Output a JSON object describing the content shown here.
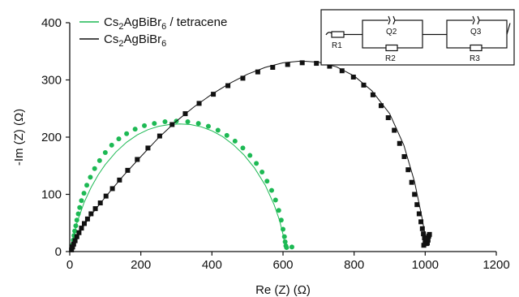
{
  "chart_data": {
    "type": "scatter",
    "xlabel": "Re (Z) (Ω)",
    "ylabel": "-Im (Z) (Ω)",
    "xlim": [
      0,
      1200
    ],
    "ylim": [
      0,
      400
    ],
    "xticks": [
      0,
      200,
      400,
      600,
      800,
      1000,
      1200
    ],
    "yticks": [
      0,
      100,
      200,
      300,
      400
    ],
    "grid": false,
    "legend_position": "top-left",
    "series": [
      {
        "name": "Cs2AgBiBr6 / tetracene",
        "name_parts": {
          "a": "Cs",
          "b": "2",
          "c": "AgBiBr",
          "d": "6",
          "e": " / tetracene"
        },
        "color": "#1db954",
        "marker": "circle",
        "x": [
          6,
          8,
          10,
          12,
          14,
          17,
          20,
          24,
          28,
          33,
          40,
          48,
          58,
          70,
          84,
          100,
          118,
          138,
          160,
          184,
          210,
          238,
          268,
          300,
          332,
          362,
          390,
          417,
          442,
          465,
          487,
          507,
          525,
          541,
          555,
          568,
          579,
          588,
          595,
          600,
          604,
          606,
          608,
          610,
          625
        ],
        "y": [
          5,
          12,
          20,
          28,
          36,
          45,
          55,
          66,
          77,
          89,
          102,
          116,
          130,
          145,
          159,
          173,
          186,
          197,
          206,
          214,
          220,
          224,
          227,
          228,
          227,
          224,
          219,
          212,
          203,
          193,
          181,
          168,
          154,
          139,
          123,
          107,
          90,
          72,
          55,
          39,
          26,
          17,
          10,
          7,
          8
        ],
        "fit_x": [
          5,
          20,
          40,
          60,
          80,
          100,
          130,
          160,
          190,
          220,
          250,
          280,
          310,
          340,
          370,
          400,
          430,
          460,
          490,
          520,
          550,
          575,
          590,
          600,
          607
        ],
        "fit_y": [
          2,
          50,
          85,
          112,
          134,
          152,
          174,
          191,
          204,
          213,
          219,
          222,
          223,
          222,
          218,
          211,
          201,
          187,
          169,
          146,
          116,
          82,
          55,
          30,
          4
        ]
      },
      {
        "name": "Cs2AgBiBr6",
        "name_parts": {
          "a": "Cs",
          "b": "2",
          "c": "AgBiBr",
          "d": "6"
        },
        "color": "#111111",
        "marker": "square",
        "x": [
          5,
          8,
          11,
          15,
          20,
          26,
          33,
          41,
          50,
          60,
          72,
          86,
          102,
          120,
          140,
          163,
          190,
          220,
          253,
          288,
          325,
          364,
          404,
          445,
          487,
          529,
          571,
          613,
          654,
          694,
          731,
          766,
          798,
          827,
          853,
          876,
          896,
          913,
          928,
          941,
          952,
          962,
          970,
          977,
          983,
          988,
          992,
          995,
          998,
          1000,
          1002,
          1004,
          1006,
          1008,
          1010,
          1012,
          1004,
          1000,
          996
        ],
        "y": [
          3,
          8,
          13,
          19,
          26,
          33,
          41,
          49,
          57,
          66,
          75,
          85,
          97,
          110,
          125,
          142,
          161,
          181,
          202,
          222,
          241,
          259,
          275,
          290,
          303,
          314,
          322,
          327,
          330,
          329,
          324,
          316,
          305,
          291,
          274,
          255,
          234,
          212,
          189,
          166,
          143,
          121,
          100,
          82,
          66,
          52,
          40,
          31,
          24,
          19,
          16,
          14,
          15,
          20,
          27,
          30,
          22,
          14,
          11
        ],
        "fit_x": [
          5,
          30,
          60,
          100,
          150,
          200,
          250,
          300,
          350,
          400,
          450,
          500,
          550,
          600,
          650,
          700,
          750,
          800,
          850,
          900,
          940,
          970,
          990,
          1000,
          1004
        ],
        "fit_y": [
          2,
          36,
          64,
          95,
          132,
          166,
          199,
          228,
          253,
          275,
          294,
          310,
          322,
          330,
          333,
          331,
          323,
          307,
          281,
          241,
          186,
          122,
          62,
          28,
          10
        ]
      }
    ]
  },
  "circuit": {
    "labels": [
      "R1",
      "Q2",
      "R2",
      "Q3",
      "R3"
    ]
  }
}
